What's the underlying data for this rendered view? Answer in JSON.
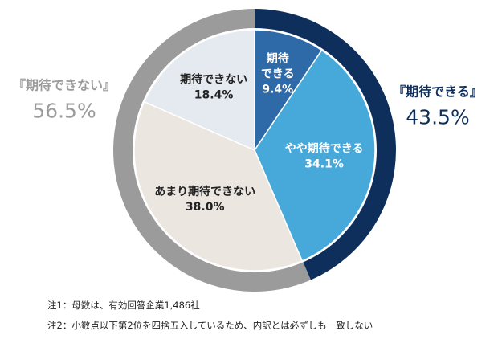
{
  "chart_data": {
    "type": "pie",
    "slices": [
      {
        "label_lines": [
          "期待",
          "できる"
        ],
        "value": 9.4,
        "value_label": "9.4%",
        "color": "#2e6aa8",
        "text_color": "#ffffff"
      },
      {
        "label_lines": [
          "やや期待できる"
        ],
        "value": 34.1,
        "value_label": "34.1%",
        "color": "#47a9d9",
        "text_color": "#ffffff"
      },
      {
        "label_lines": [
          "あまり期待できない"
        ],
        "value": 38.0,
        "value_label": "38.0%",
        "color": "#ece6e1",
        "text_color": "#222222"
      },
      {
        "label_lines": [
          "期待できない"
        ],
        "value": 18.4,
        "value_label": "18.4%",
        "color": "#e5eaf0",
        "text_color": "#222222"
      }
    ],
    "groups": [
      {
        "label": "『期待できる』",
        "value": 43.5,
        "value_label": "43.5%",
        "color": "#0e2f5c"
      },
      {
        "label": "『期待できない』",
        "value": 56.5,
        "value_label": "56.5%",
        "color": "#9b9b9b"
      }
    ]
  },
  "notes": [
    "注1：母数は、有効回答企業1,486社",
    "注2：小数点以下第2位を四捨五入しているため、内訳とは必ずしも一致しない"
  ]
}
